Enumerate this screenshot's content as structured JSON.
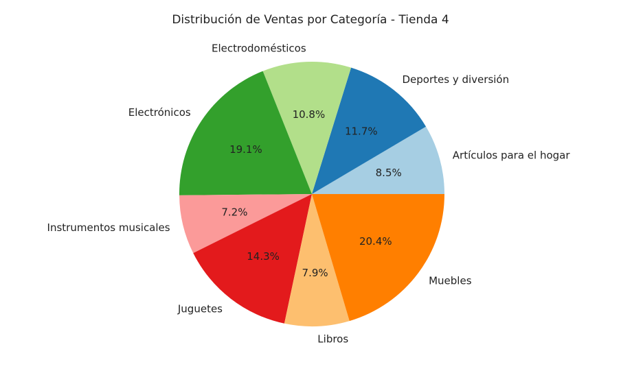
{
  "chart_data": {
    "type": "pie",
    "title": "Distribución de Ventas por Categoría - Tienda 4",
    "start_angle_deg": 0,
    "direction": "counterclockwise",
    "slices": [
      {
        "label": "Artículos para el hogar",
        "value": 8.5,
        "pct_label": "8.5%",
        "color": "#a6cee3"
      },
      {
        "label": "Deportes y diversión",
        "value": 11.7,
        "pct_label": "11.7%",
        "color": "#1f78b4"
      },
      {
        "label": "Electrodomésticos",
        "value": 10.8,
        "pct_label": "10.8%",
        "color": "#b2df8a"
      },
      {
        "label": "Electrónicos",
        "value": 19.1,
        "pct_label": "19.1%",
        "color": "#33a02c"
      },
      {
        "label": "Instrumentos musicales",
        "value": 7.2,
        "pct_label": "7.2%",
        "color": "#fb9a99"
      },
      {
        "label": "Juguetes",
        "value": 14.3,
        "pct_label": "14.3%",
        "color": "#e31a1c"
      },
      {
        "label": "Libros",
        "value": 7.9,
        "pct_label": "7.9%",
        "color": "#fdbf6f"
      },
      {
        "label": "Muebles",
        "value": 20.4,
        "pct_label": "20.4%",
        "color": "#ff7f00"
      }
    ]
  }
}
